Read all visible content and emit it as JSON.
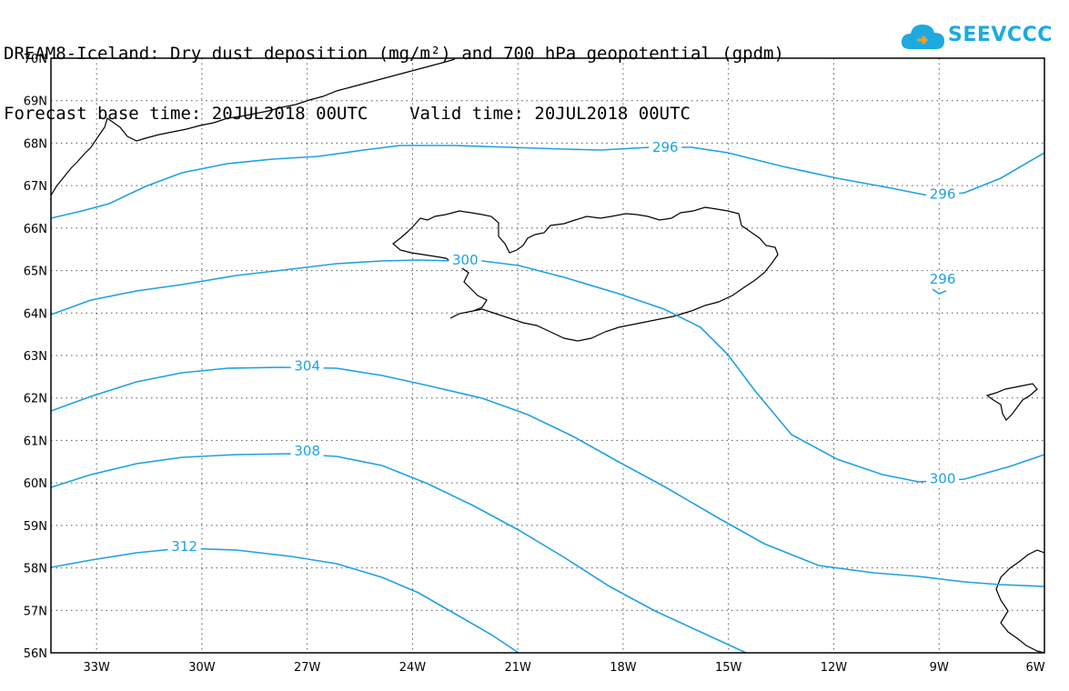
{
  "title": {
    "line1": "DREAM8-Iceland: Dry dust deposition (mg/m²) and 700 hPa geopotential (gpdm)",
    "line2": "Forecast base time: 20JUL2018 00UTC    Valid time: 20JUL2018 00UTC"
  },
  "logo": {
    "text": "SEEVCCC",
    "icon": "cloud-icon",
    "color": "#1eaae0"
  },
  "map": {
    "lon_range": [
      -34.3,
      -6.0
    ],
    "lat_range": [
      56.0,
      70.0
    ],
    "grid": "dotted",
    "contour_color": "#1ea0e6",
    "lat_ticks": [
      "70N",
      "69N",
      "68N",
      "67N",
      "66N",
      "65N",
      "64N",
      "63N",
      "62N",
      "61N",
      "60N",
      "59N",
      "58N",
      "57N",
      "56N"
    ],
    "lon_ticks": [
      "33W",
      "30W",
      "27W",
      "24W",
      "21W",
      "18W",
      "15W",
      "12W",
      "9W",
      "6W"
    ],
    "contour_labels": [
      "296",
      "296",
      "296",
      "300",
      "300",
      "304",
      "308",
      "312"
    ]
  }
}
